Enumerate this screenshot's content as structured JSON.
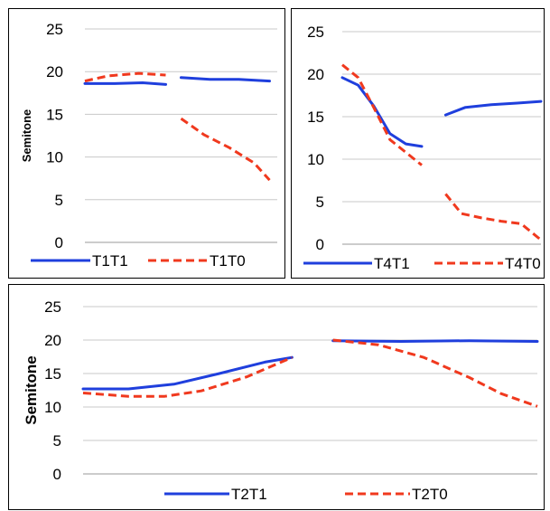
{
  "chart_data": [
    {
      "type": "line",
      "ylabel": "Semitone",
      "ylim": [
        0,
        25
      ],
      "yticks": [
        0,
        5,
        10,
        15,
        20,
        25
      ],
      "grid": true,
      "legend_position": "bottom",
      "series": [
        {
          "name": "T1T1",
          "color": "#1f3fdd",
          "dash": "solid",
          "segments": [
            [
              [
                0.0,
                18.6
              ],
              [
                0.15,
                18.6
              ],
              [
                0.3,
                18.7
              ],
              [
                0.42,
                18.5
              ]
            ],
            [
              [
                0.5,
                19.3
              ],
              [
                0.65,
                19.1
              ],
              [
                0.8,
                19.1
              ],
              [
                0.96,
                18.9
              ]
            ]
          ]
        },
        {
          "name": "T1T0",
          "color": "#f0391e",
          "dash": "dashed",
          "segments": [
            [
              [
                0.0,
                18.9
              ],
              [
                0.12,
                19.5
              ],
              [
                0.28,
                19.8
              ],
              [
                0.42,
                19.6
              ]
            ],
            [
              [
                0.5,
                14.5
              ],
              [
                0.62,
                12.6
              ],
              [
                0.75,
                11.1
              ],
              [
                0.88,
                9.3
              ],
              [
                0.96,
                7.3
              ]
            ]
          ]
        }
      ]
    },
    {
      "type": "line",
      "ylabel": "",
      "ylim": [
        0,
        25
      ],
      "yticks": [
        0,
        5,
        10,
        15,
        20,
        25
      ],
      "grid": true,
      "legend_position": "bottom",
      "series": [
        {
          "name": "T4T1",
          "color": "#1f3fdd",
          "dash": "solid",
          "segments": [
            [
              [
                0.0,
                19.6
              ],
              [
                0.08,
                18.7
              ],
              [
                0.16,
                16.2
              ],
              [
                0.24,
                13.0
              ],
              [
                0.32,
                11.8
              ],
              [
                0.4,
                11.5
              ]
            ],
            [
              [
                0.52,
                15.2
              ],
              [
                0.62,
                16.1
              ],
              [
                0.75,
                16.4
              ],
              [
                0.88,
                16.6
              ],
              [
                1.0,
                16.8
              ]
            ]
          ]
        },
        {
          "name": "T4T0",
          "color": "#f0391e",
          "dash": "dashed",
          "segments": [
            [
              [
                0.0,
                21.1
              ],
              [
                0.08,
                19.6
              ],
              [
                0.16,
                16.0
              ],
              [
                0.24,
                12.3
              ],
              [
                0.32,
                10.8
              ],
              [
                0.4,
                9.3
              ]
            ],
            [
              [
                0.52,
                5.9
              ],
              [
                0.6,
                3.6
              ],
              [
                0.7,
                3.1
              ],
              [
                0.8,
                2.7
              ],
              [
                0.9,
                2.4
              ],
              [
                1.0,
                0.5
              ]
            ]
          ]
        }
      ]
    },
    {
      "type": "line",
      "ylabel": "Semitone",
      "ylim": [
        0,
        25
      ],
      "yticks": [
        0,
        5,
        10,
        15,
        20,
        25
      ],
      "grid": true,
      "legend_position": "bottom",
      "series": [
        {
          "name": "T2T1",
          "color": "#1f3fdd",
          "dash": "solid",
          "segments": [
            [
              [
                0.0,
                12.7
              ],
              [
                0.1,
                12.7
              ],
              [
                0.2,
                13.4
              ],
              [
                0.3,
                15.0
              ],
              [
                0.4,
                16.7
              ],
              [
                0.46,
                17.4
              ]
            ],
            [
              [
                0.55,
                19.9
              ],
              [
                0.7,
                19.8
              ],
              [
                0.85,
                19.9
              ],
              [
                1.0,
                19.8
              ]
            ]
          ]
        },
        {
          "name": "T2T0",
          "color": "#f0391e",
          "dash": "dashed",
          "segments": [
            [
              [
                0.0,
                12.1
              ],
              [
                0.1,
                11.6
              ],
              [
                0.18,
                11.6
              ],
              [
                0.26,
                12.4
              ],
              [
                0.36,
                14.5
              ],
              [
                0.46,
                17.4
              ]
            ],
            [
              [
                0.55,
                20.0
              ],
              [
                0.65,
                19.3
              ],
              [
                0.75,
                17.4
              ],
              [
                0.85,
                14.4
              ],
              [
                0.92,
                12.0
              ],
              [
                1.0,
                10.1
              ]
            ]
          ]
        }
      ]
    }
  ]
}
